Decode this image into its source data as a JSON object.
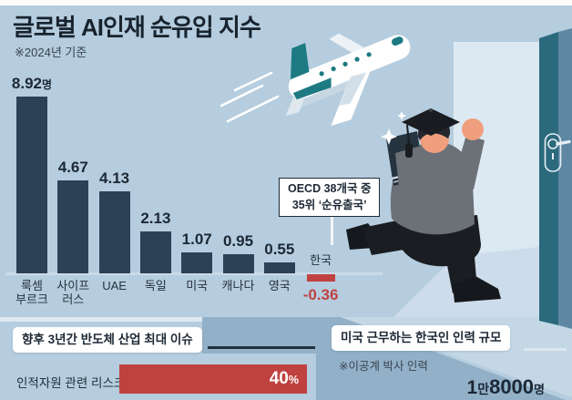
{
  "title": "글로벌 AI인재 순유입 지수",
  "subtitle": "※2024년 기준",
  "chart_data": [
    {
      "type": "bar",
      "title": "글로벌 AI인재 순유입 지수",
      "subtitle": "※2024년 기준",
      "unit": "명",
      "categories": [
        "룩셈부르크",
        "사이프러스",
        "UAE",
        "독일",
        "미국",
        "캐나다",
        "영국",
        "한국"
      ],
      "categories_display": [
        [
          "룩셈",
          "부르크"
        ],
        [
          "사이프",
          "러스"
        ],
        [
          "UAE"
        ],
        [
          "독일"
        ],
        [
          "미국"
        ],
        [
          "캐나다"
        ],
        [
          "영국"
        ],
        [
          "한국"
        ]
      ],
      "values": [
        8.92,
        4.67,
        4.13,
        2.13,
        1.07,
        0.95,
        0.55,
        -0.36
      ],
      "value_labels": [
        "8.92",
        "4.67",
        "4.13",
        "2.13",
        "1.07",
        "0.95",
        "0.55",
        "-0.36"
      ],
      "ylim": [
        -0.5,
        9
      ],
      "grid": false,
      "bar_color": "#2d4156",
      "negative_bar_color": "#c04240",
      "annotation": "OECD 38개국 중 35위 ‘순유출국’"
    },
    {
      "type": "bar",
      "title": "향후 3년간 반도체 산업 최대 이슈",
      "categories": [
        "인적자원 관련 리스크"
      ],
      "values": [
        40
      ],
      "unit": "%",
      "bar_color": "#c04240"
    },
    {
      "type": "bar",
      "title": "미국 근무하는 한국인 인력 규모",
      "note": "※이공계 박사 인력",
      "categories": [
        "이공계 박사 인력"
      ],
      "values": [
        18000
      ],
      "value_label": "1만8000명",
      "unit": "명"
    }
  ],
  "annotation_box": {
    "line1": "OECD 38개국 중",
    "line2": "35위 ‘순유출국’"
  },
  "bottom_left": {
    "header": "향후 3년간 반도체 산업 최대 이슈",
    "bar_label": "인적자원 관련 리스크",
    "bar_value": "40",
    "bar_unit": "%"
  },
  "bottom_right": {
    "header": "미국 근무하는 한국인 인력 규모",
    "note": "※이공계 박사 인력",
    "value_prefix_num": "1",
    "value_prefix_unit": "만",
    "value_number": "8000",
    "value_unit": "명"
  },
  "colors": {
    "background": "#b5cdde",
    "bar": "#2d4156",
    "negative": "#c04240",
    "band_medium": "#92b1c9",
    "band_light": "#c3d7e5",
    "door_teal": "#2b6a7d",
    "door_slate": "#5e87a3",
    "doorway": "#dde9f2",
    "plane_teal": "#1d7a83"
  },
  "illustration_icons": [
    "airplane-icon",
    "speed-lines-icon",
    "door-icon",
    "door-handle-icon",
    "running-graduate-icon",
    "graduation-cap-icon",
    "book-icon",
    "sparkle-icon"
  ]
}
